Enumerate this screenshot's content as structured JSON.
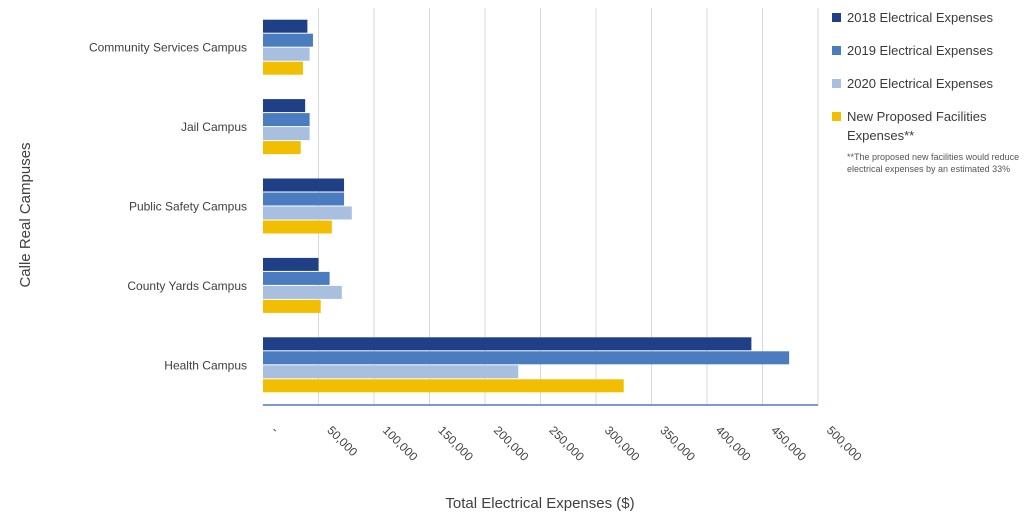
{
  "chart_data": {
    "type": "bar",
    "orientation": "horizontal",
    "categories": [
      "Community Services Campus",
      "Jail Campus",
      "Public Safety Campus",
      "County Yards Campus",
      "Health Campus"
    ],
    "series": [
      {
        "name": "2018 Electrical Expenses",
        "color": "#1f3f86",
        "values": [
          40000,
          38000,
          73000,
          50000,
          440000
        ]
      },
      {
        "name": "2019 Electrical Expenses",
        "color": "#4b7cc0",
        "values": [
          45000,
          42000,
          73000,
          60000,
          474000
        ]
      },
      {
        "name": "2020 Electrical Expenses",
        "color": "#a9bfe0",
        "values": [
          42000,
          42000,
          80000,
          71000,
          230000
        ]
      },
      {
        "name": "New Proposed Facilities Expenses**",
        "color": "#f2bf00",
        "values": [
          36000,
          34000,
          62000,
          52000,
          325000
        ]
      }
    ],
    "xlabel": "Total Electrical Expenses ($)",
    "ylabel": "Calle Real Campuses",
    "xlim": [
      0,
      500000
    ],
    "xticks": [
      "-",
      "50,000",
      "100,000",
      "150,000",
      "200,000",
      "250,000",
      "300,000",
      "350,000",
      "400,000",
      "450,000",
      "500,000"
    ],
    "grid": true,
    "legend_position": "right",
    "legend_note": "**The proposed new facilities would reduce electrical expenses by an estimated 33%"
  }
}
